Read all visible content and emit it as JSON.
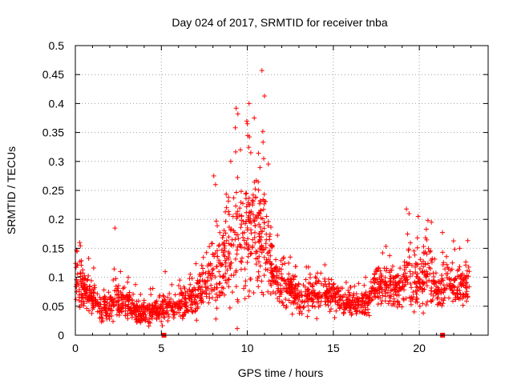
{
  "chart_data": {
    "type": "scatter",
    "title": "Day 024 of 2017, SRMTID for receiver tnba",
    "xlabel": "GPS time / hours",
    "ylabel": "SRMTID / TECUs",
    "xlim": [
      0,
      24
    ],
    "ylim": [
      0,
      0.5
    ],
    "grid": true,
    "marker": "+",
    "color": "#ff0000",
    "x_ticks": [
      0,
      5,
      10,
      15,
      20
    ],
    "x_tick_labels": [
      "0",
      "5",
      "10",
      "15",
      "20"
    ],
    "y_ticks": [
      0,
      0.05,
      0.1,
      0.15,
      0.2,
      0.25,
      0.3,
      0.35,
      0.4,
      0.45,
      0.5
    ],
    "y_tick_labels": [
      "0",
      "0.05",
      "0.1",
      "0.15",
      "0.2",
      "0.25",
      "0.3",
      "0.35",
      "0.4",
      "0.45",
      "0.5"
    ],
    "baseline_markers": [
      {
        "x": 5.15,
        "y": 0.0
      },
      {
        "x": 21.35,
        "y": 0.0
      }
    ],
    "profile": {
      "hours": [
        0.0,
        0.3,
        0.8,
        1.5,
        2.0,
        2.3,
        2.6,
        3.0,
        3.5,
        4.0,
        4.5,
        5.0,
        5.5,
        6.0,
        6.5,
        7.0,
        7.5,
        8.0,
        8.5,
        9.0,
        9.5,
        10.0,
        10.5,
        11.0,
        11.5,
        12.0,
        13.0,
        14.0,
        15.0,
        16.0,
        17.0,
        17.5,
        18.0,
        18.5,
        19.0,
        19.3,
        19.6,
        20.0,
        20.5,
        21.0,
        21.5,
        22.0,
        22.5,
        22.9
      ],
      "median": [
        0.105,
        0.085,
        0.07,
        0.05,
        0.045,
        0.075,
        0.05,
        0.055,
        0.045,
        0.04,
        0.04,
        0.045,
        0.05,
        0.055,
        0.06,
        0.07,
        0.085,
        0.105,
        0.12,
        0.15,
        0.17,
        0.19,
        0.18,
        0.16,
        0.11,
        0.09,
        0.065,
        0.07,
        0.075,
        0.05,
        0.06,
        0.085,
        0.09,
        0.08,
        0.075,
        0.11,
        0.085,
        0.1,
        0.11,
        0.065,
        0.095,
        0.085,
        0.085,
        0.085
      ],
      "spread": [
        0.045,
        0.04,
        0.035,
        0.03,
        0.025,
        0.055,
        0.03,
        0.03,
        0.025,
        0.02,
        0.02,
        0.025,
        0.03,
        0.03,
        0.035,
        0.04,
        0.05,
        0.06,
        0.07,
        0.1,
        0.11,
        0.13,
        0.11,
        0.1,
        0.05,
        0.04,
        0.03,
        0.03,
        0.035,
        0.025,
        0.03,
        0.035,
        0.04,
        0.035,
        0.03,
        0.07,
        0.05,
        0.06,
        0.06,
        0.03,
        0.045,
        0.04,
        0.04,
        0.04
      ],
      "point_count": 2000
    },
    "peak_points": [
      {
        "x": 10.85,
        "y": 0.457
      },
      {
        "x": 11.0,
        "y": 0.413
      },
      {
        "x": 10.1,
        "y": 0.4
      },
      {
        "x": 9.35,
        "y": 0.392
      },
      {
        "x": 9.45,
        "y": 0.382
      },
      {
        "x": 10.4,
        "y": 0.375
      },
      {
        "x": 10.0,
        "y": 0.365
      },
      {
        "x": 10.9,
        "y": 0.352
      },
      {
        "x": 9.3,
        "y": 0.358
      },
      {
        "x": 9.6,
        "y": 0.32
      },
      {
        "x": 10.2,
        "y": 0.315
      },
      {
        "x": 10.95,
        "y": 0.305
      },
      {
        "x": 8.05,
        "y": 0.275
      },
      {
        "x": 8.15,
        "y": 0.26
      },
      {
        "x": 2.3,
        "y": 0.185
      },
      {
        "x": 0.25,
        "y": 0.16
      },
      {
        "x": 19.25,
        "y": 0.218
      },
      {
        "x": 19.4,
        "y": 0.21
      },
      {
        "x": 20.5,
        "y": 0.198
      },
      {
        "x": 20.7,
        "y": 0.195
      },
      {
        "x": 22.35,
        "y": 0.15
      }
    ]
  }
}
